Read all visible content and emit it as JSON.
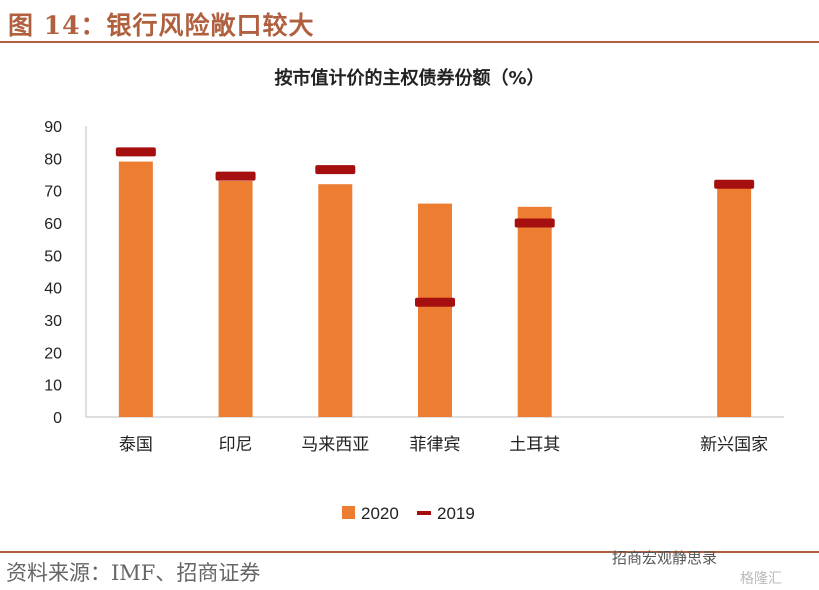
{
  "figure": {
    "title": "图 14：银行风险敞口较大",
    "source": "资料来源：IMF、招商证券",
    "watermark": "招商宏观静思录",
    "watermark2": "格隆汇"
  },
  "chart_data": {
    "type": "bar",
    "title": "按市值计价的主权债券份额（%）",
    "categories": [
      "泰国",
      "印尼",
      "马来西亚",
      "菲律宾",
      "土耳其",
      "",
      "新兴国家"
    ],
    "series": [
      {
        "name": "2020",
        "kind": "bar",
        "color": "#ed7d31",
        "values": [
          79,
          73,
          72,
          66,
          65,
          null,
          71
        ]
      },
      {
        "name": "2019",
        "kind": "marker",
        "color": "#a50f0f",
        "values": [
          82,
          74.5,
          76.5,
          35.5,
          60,
          null,
          72
        ]
      }
    ],
    "ylim": [
      0,
      90
    ],
    "yticks": [
      0,
      10,
      20,
      30,
      40,
      50,
      60,
      70,
      80,
      90
    ],
    "xlabel": "",
    "ylabel": "",
    "grid": false,
    "legend": "bottom"
  }
}
